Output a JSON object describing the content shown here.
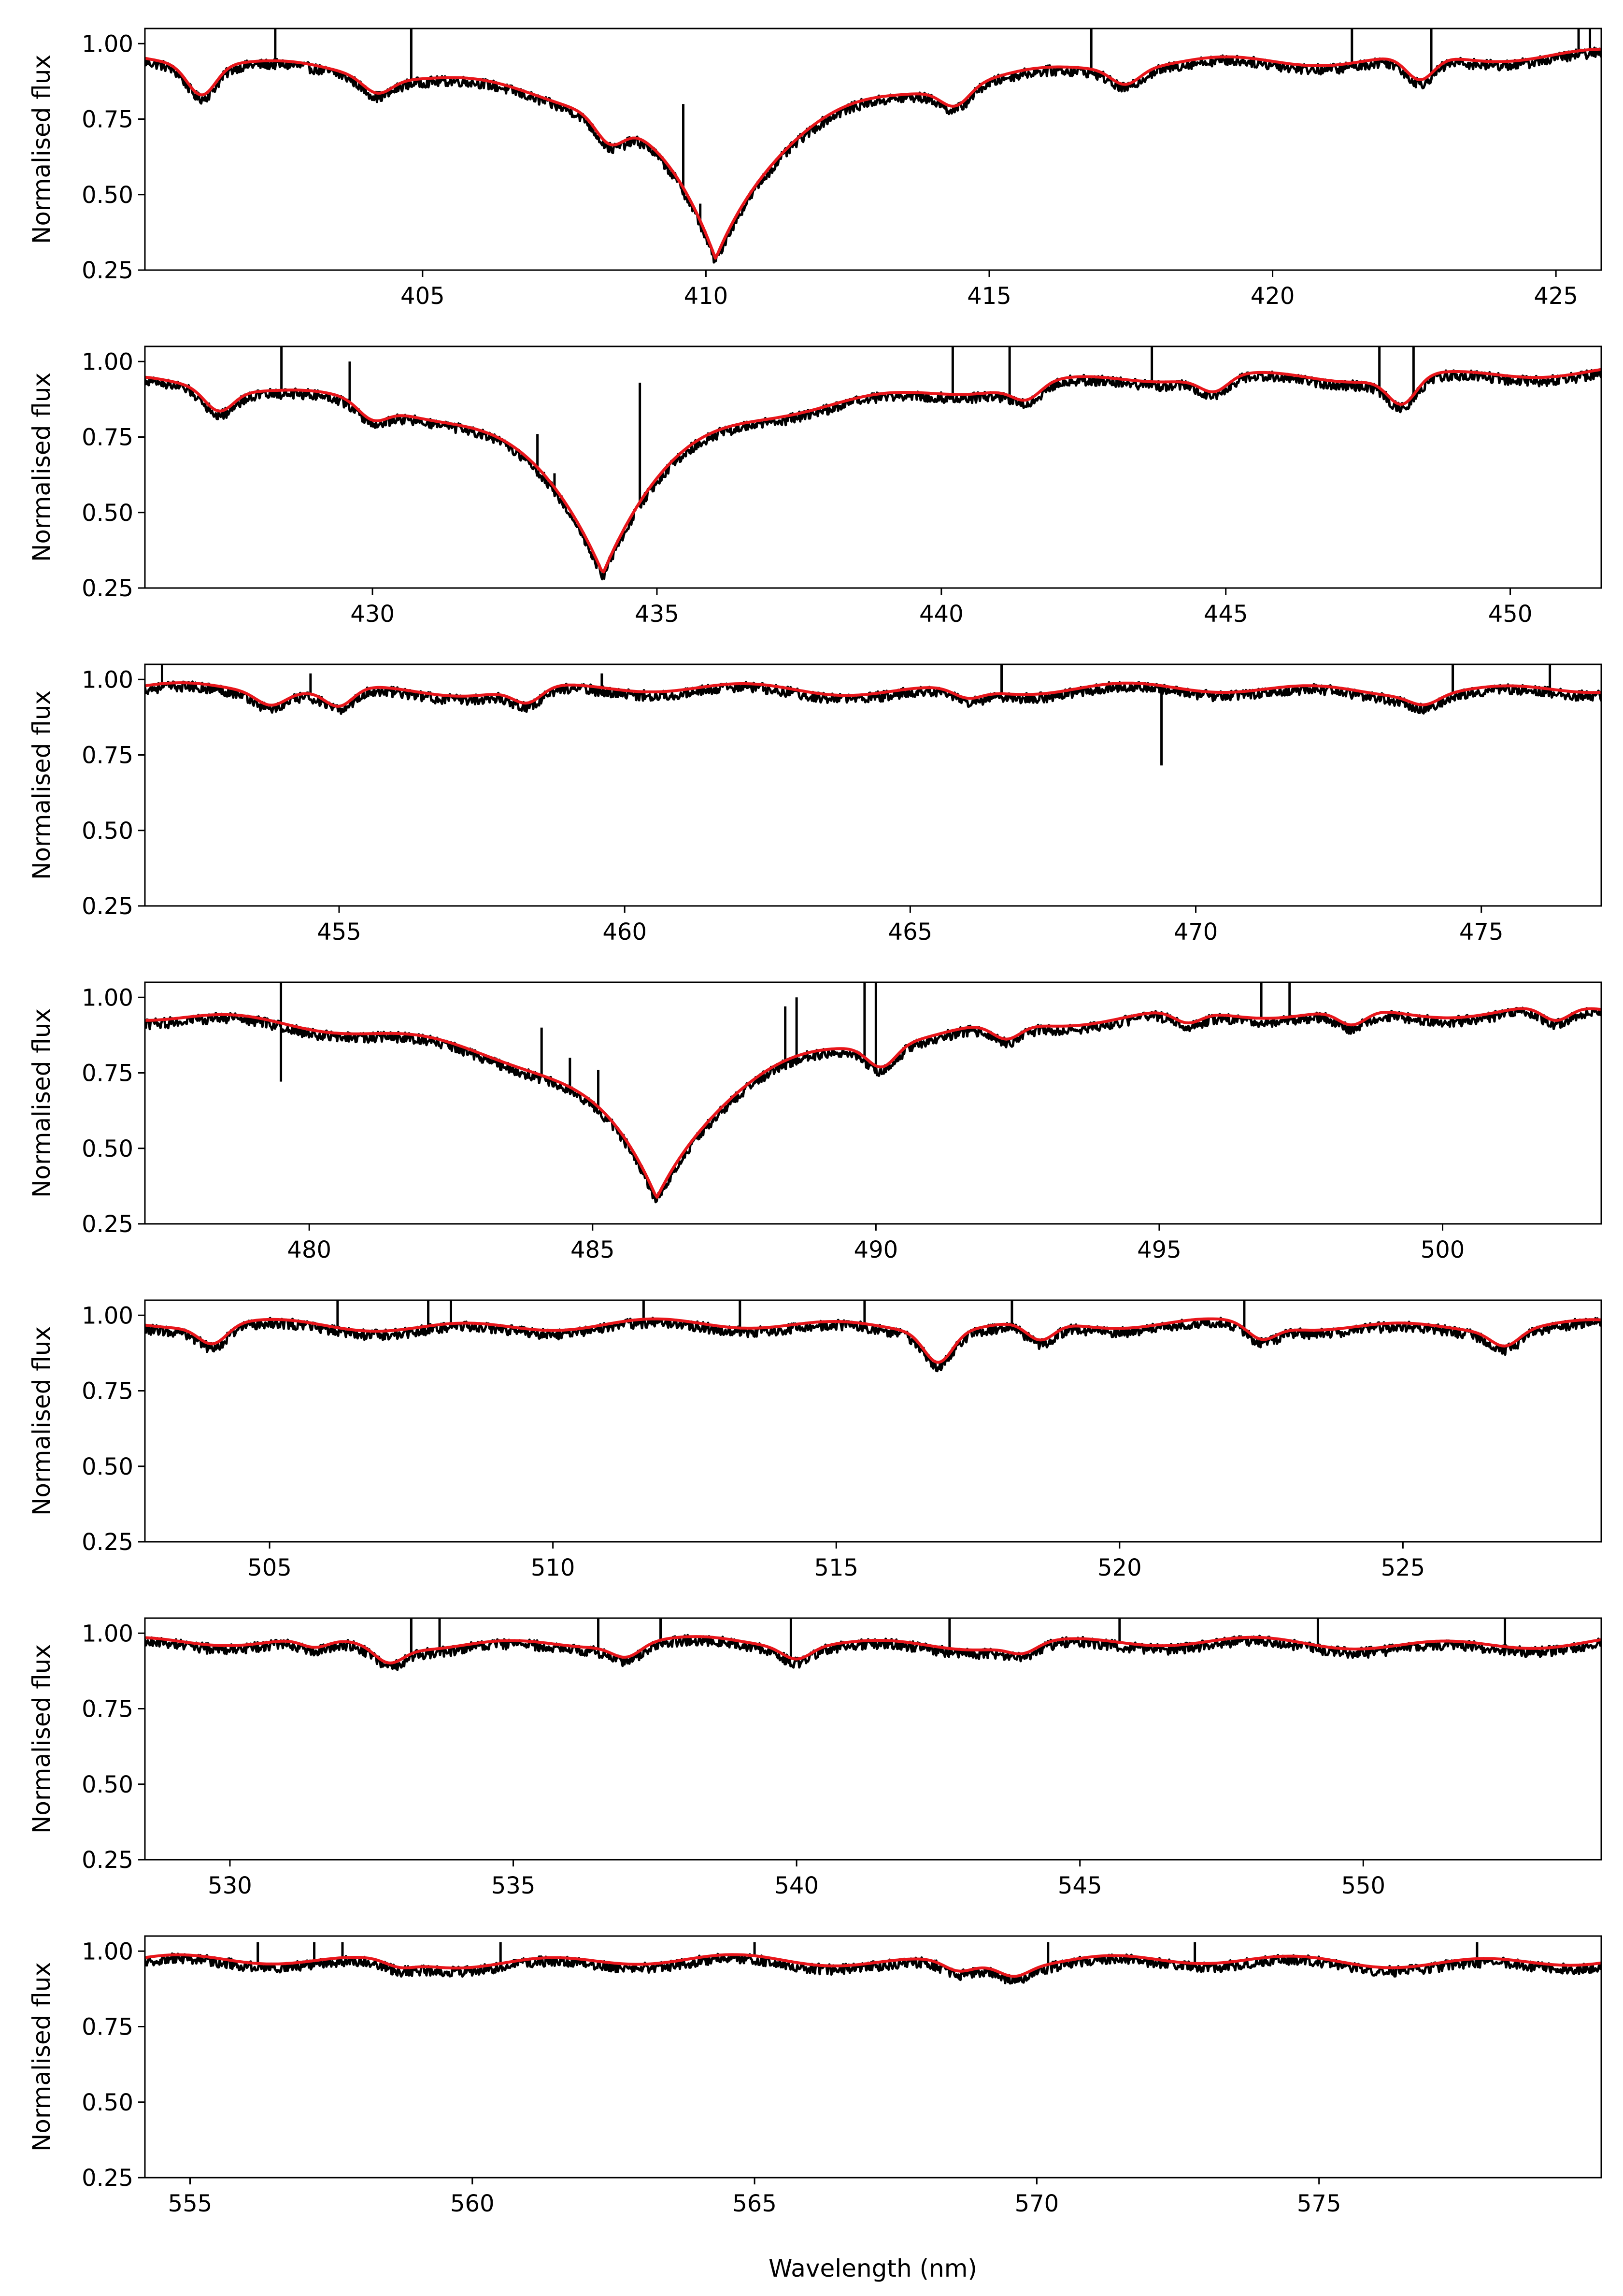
{
  "figure": {
    "xlabel": "Wavelength (nm)",
    "ylabel": "Normalised flux"
  },
  "chart_data": [
    {
      "type": "line",
      "xlim": [
        400.1,
        425.8
      ],
      "ylim": [
        0.25,
        1.05
      ],
      "xticks": [
        405,
        410,
        415,
        420,
        425
      ],
      "yticks": [
        0.25,
        0.5,
        0.75,
        1.0
      ],
      "ytick_labels": [
        "0.25",
        "0.50",
        "0.75",
        "1.00"
      ],
      "ylabel": "Normalised flux",
      "line_center": 410.17,
      "line_depth": 0.62,
      "line_width": 0.9,
      "series": [
        {
          "color": "#000000"
        },
        {
          "color": "#e8161b"
        }
      ],
      "emission_spikes": [
        [
          402.4,
          1.06
        ],
        [
          404.8,
          1.06
        ],
        [
          409.6,
          0.8
        ],
        [
          409.9,
          0.47
        ],
        [
          416.8,
          1.06
        ],
        [
          421.4,
          1.06
        ],
        [
          422.8,
          1.06
        ],
        [
          425.4,
          1.06
        ],
        [
          425.6,
          1.06
        ]
      ],
      "absorption_dips": [
        [
          401.1,
          0.1
        ],
        [
          404.2,
          0.05
        ],
        [
          408.3,
          0.08
        ],
        [
          414.4,
          0.06
        ],
        [
          417.4,
          0.05
        ],
        [
          422.6,
          0.08
        ]
      ]
    },
    {
      "type": "line",
      "xlim": [
        426.0,
        451.6
      ],
      "ylim": [
        0.25,
        1.05
      ],
      "xticks": [
        430,
        435,
        440,
        445,
        450
      ],
      "yticks": [
        0.25,
        0.5,
        0.75,
        1.0
      ],
      "ytick_labels": [
        "0.25",
        "0.50",
        "0.75",
        "1.00"
      ],
      "ylabel": "Normalised flux",
      "line_center": 434.05,
      "line_depth": 0.6,
      "line_width": 0.95,
      "series": [
        {
          "color": "#000000"
        },
        {
          "color": "#e8161b"
        }
      ],
      "emission_spikes": [
        [
          428.4,
          1.06
        ],
        [
          429.6,
          1.0
        ],
        [
          432.9,
          0.76
        ],
        [
          433.2,
          0.63
        ],
        [
          434.7,
          0.93
        ],
        [
          440.2,
          1.06
        ],
        [
          441.2,
          1.06
        ],
        [
          443.7,
          1.06
        ],
        [
          447.7,
          1.06
        ],
        [
          448.3,
          1.06
        ]
      ],
      "absorption_dips": [
        [
          427.3,
          0.07
        ],
        [
          430.0,
          0.05
        ],
        [
          441.5,
          0.05
        ],
        [
          444.8,
          0.05
        ],
        [
          448.1,
          0.09
        ]
      ]
    },
    {
      "type": "line",
      "xlim": [
        451.6,
        477.1
      ],
      "ylim": [
        0.25,
        1.05
      ],
      "xticks": [
        455,
        460,
        465,
        470,
        475
      ],
      "yticks": [
        0.25,
        0.5,
        0.75,
        1.0
      ],
      "ytick_labels": [
        "0.25",
        "0.50",
        "0.75",
        "1.00"
      ],
      "ylabel": "Normalised flux",
      "line_center": 0,
      "line_depth": 0,
      "line_width": 1,
      "series": [
        {
          "color": "#000000"
        },
        {
          "color": "#e8161b"
        }
      ],
      "emission_spikes": [
        [
          451.9,
          1.06
        ],
        [
          454.5,
          1.02
        ],
        [
          459.6,
          1.02
        ],
        [
          466.6,
          1.06
        ],
        [
          474.5,
          1.06
        ],
        [
          476.2,
          1.06
        ]
      ],
      "absorption_dips": [
        [
          453.8,
          0.04
        ],
        [
          455.0,
          0.06
        ],
        [
          458.3,
          0.05
        ],
        [
          466.0,
          0.03
        ],
        [
          469.4,
          0.26
        ],
        [
          474.0,
          0.03
        ]
      ]
    },
    {
      "type": "line",
      "xlim": [
        477.1,
        502.8
      ],
      "ylim": [
        0.25,
        1.05
      ],
      "xticks": [
        480,
        485,
        490,
        495,
        500
      ],
      "yticks": [
        0.25,
        0.5,
        0.75,
        1.0
      ],
      "ytick_labels": [
        "0.25",
        "0.50",
        "0.75",
        "1.00"
      ],
      "ylabel": "Normalised flux",
      "line_center": 486.13,
      "line_depth": 0.58,
      "line_width": 1.0,
      "series": [
        {
          "color": "#000000"
        },
        {
          "color": "#e8161b"
        }
      ],
      "emission_spikes": [
        [
          479.5,
          1.06
        ],
        [
          484.1,
          0.9
        ],
        [
          484.6,
          0.8
        ],
        [
          485.1,
          0.76
        ],
        [
          488.4,
          0.97
        ],
        [
          488.6,
          1.0
        ],
        [
          489.8,
          1.06
        ],
        [
          490.0,
          1.06
        ],
        [
          496.8,
          1.06
        ],
        [
          497.3,
          1.06
        ]
      ],
      "absorption_dips": [
        [
          479.5,
          0.19
        ],
        [
          490.1,
          0.07
        ],
        [
          492.3,
          0.05
        ],
        [
          495.5,
          0.04
        ],
        [
          498.4,
          0.05
        ],
        [
          502.0,
          0.05
        ]
      ]
    },
    {
      "type": "line",
      "xlim": [
        502.8,
        528.5
      ],
      "ylim": [
        0.25,
        1.05
      ],
      "xticks": [
        505,
        510,
        515,
        520,
        525
      ],
      "yticks": [
        0.25,
        0.5,
        0.75,
        1.0
      ],
      "ytick_labels": [
        "0.25",
        "0.50",
        "0.75",
        "1.00"
      ],
      "ylabel": "Normalised flux",
      "line_center": 0,
      "line_depth": 0,
      "line_width": 1,
      "series": [
        {
          "color": "#000000"
        },
        {
          "color": "#e8161b"
        }
      ],
      "emission_spikes": [
        [
          506.2,
          1.06
        ],
        [
          507.8,
          1.06
        ],
        [
          508.2,
          1.06
        ],
        [
          511.6,
          1.06
        ],
        [
          513.3,
          1.06
        ],
        [
          515.5,
          1.06
        ],
        [
          518.1,
          1.06
        ],
        [
          522.2,
          1.06
        ]
      ],
      "absorption_dips": [
        [
          504.0,
          0.06
        ],
        [
          516.8,
          0.1
        ],
        [
          518.6,
          0.06
        ],
        [
          522.5,
          0.05
        ],
        [
          526.8,
          0.05
        ]
      ]
    },
    {
      "type": "line",
      "xlim": [
        528.5,
        554.2
      ],
      "ylim": [
        0.25,
        1.05
      ],
      "xticks": [
        530,
        535,
        540,
        545,
        550
      ],
      "yticks": [
        0.25,
        0.5,
        0.75,
        1.0
      ],
      "ytick_labels": [
        "0.25",
        "0.50",
        "0.75",
        "1.00"
      ],
      "ylabel": "Normalised flux",
      "line_center": 0,
      "line_depth": 0,
      "line_width": 1,
      "series": [
        {
          "color": "#000000"
        },
        {
          "color": "#e8161b"
        }
      ],
      "emission_spikes": [
        [
          533.2,
          1.06
        ],
        [
          533.7,
          1.06
        ],
        [
          536.5,
          1.06
        ],
        [
          537.6,
          1.06
        ],
        [
          539.9,
          1.06
        ],
        [
          542.7,
          1.06
        ],
        [
          545.7,
          1.06
        ],
        [
          549.2,
          1.06
        ],
        [
          552.5,
          1.06
        ]
      ],
      "absorption_dips": [
        [
          531.5,
          0.03
        ],
        [
          532.8,
          0.05
        ],
        [
          537.0,
          0.04
        ],
        [
          540.0,
          0.04
        ],
        [
          544.0,
          0.03
        ]
      ]
    },
    {
      "type": "line",
      "xlim": [
        554.2,
        580.0
      ],
      "ylim": [
        0.25,
        1.05
      ],
      "xticks": [
        555,
        560,
        565,
        570,
        575
      ],
      "yticks": [
        0.25,
        0.5,
        0.75,
        1.0
      ],
      "ytick_labels": [
        "0.25",
        "0.50",
        "0.75",
        "1.00"
      ],
      "ylabel": "Normalised flux",
      "line_center": 0,
      "line_depth": 0,
      "line_width": 1,
      "series": [
        {
          "color": "#000000"
        },
        {
          "color": "#e8161b"
        }
      ],
      "emission_spikes": [
        [
          556.2,
          1.03
        ],
        [
          557.2,
          1.03
        ],
        [
          557.7,
          1.03
        ],
        [
          560.5,
          1.03
        ],
        [
          565.0,
          1.03
        ],
        [
          570.2,
          1.03
        ],
        [
          572.8,
          1.03
        ],
        [
          577.8,
          1.03
        ]
      ],
      "absorption_dips": [
        [
          558.7,
          0.02
        ],
        [
          568.6,
          0.03
        ],
        [
          569.6,
          0.03
        ]
      ]
    }
  ]
}
